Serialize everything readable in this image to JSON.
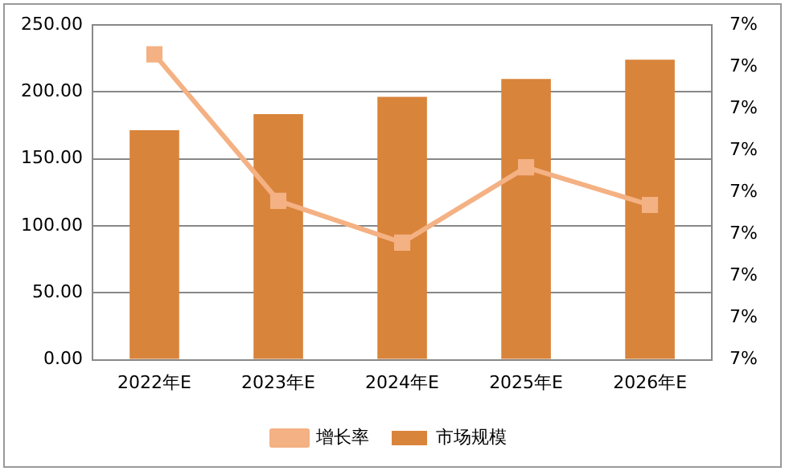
{
  "chart_data": {
    "type": "bar",
    "categories": [
      "2022年E",
      "2023年E",
      "2024年E",
      "2025年E",
      "2026年E"
    ],
    "series": [
      {
        "name": "市场规模",
        "color": "#d9843b",
        "values": [
          171.4,
          183.5,
          196.4,
          209.7,
          224.2
        ]
      },
      {
        "name": "增长率",
        "type": "line",
        "axis": "y2",
        "color": "#f4b183",
        "marker": "square",
        "values": [
          7.33,
          6.98,
          6.88,
          7.06,
          6.97
        ]
      }
    ],
    "ylim": [
      0,
      250
    ],
    "yticks": [
      {
        "value": 0,
        "label": "0.00"
      },
      {
        "value": 50,
        "label": "50.00"
      },
      {
        "value": 100,
        "label": "100.00"
      },
      {
        "value": 150,
        "label": "150.00"
      },
      {
        "value": 200,
        "label": "200.00"
      },
      {
        "value": 250,
        "label": "250.00"
      }
    ],
    "y2lim": [
      6.6,
      7.4
    ],
    "y2ticks": [
      {
        "value": 6.6,
        "label": "7%"
      },
      {
        "value": 6.7,
        "label": "7%"
      },
      {
        "value": 6.8,
        "label": "7%"
      },
      {
        "value": 6.9,
        "label": "7%"
      },
      {
        "value": 7.0,
        "label": "7%"
      },
      {
        "value": 7.1,
        "label": "7%"
      },
      {
        "value": 7.2,
        "label": "7%"
      },
      {
        "value": 7.3,
        "label": "7%"
      },
      {
        "value": 7.4,
        "label": "7%"
      }
    ],
    "grid": "y",
    "legend": "bottom"
  }
}
